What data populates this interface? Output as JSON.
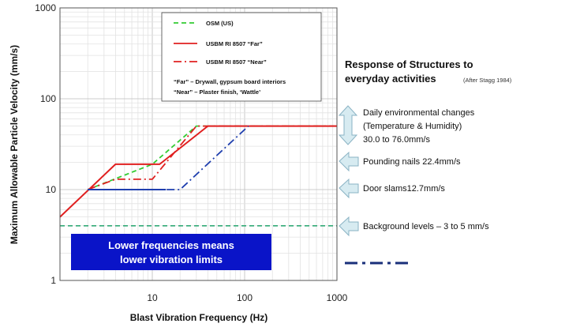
{
  "chart_data": {
    "type": "line",
    "xlabel": "Blast Vibration Frequency (Hz)",
    "ylabel": "Maximum Allowable Particle Velocity (mm/s)",
    "xscale": "log",
    "yscale": "log",
    "xlim": [
      1,
      1000
    ],
    "ylim": [
      1,
      1000
    ],
    "xticks": [
      "10",
      "100",
      "1000"
    ],
    "yticks": [
      "1",
      "10",
      "100",
      "1000"
    ],
    "grid": true,
    "legend_position": "top-right inside plot",
    "series": [
      {
        "name": "OSM (US)",
        "color": "#33cc33",
        "style": "dashed",
        "x": [
          2,
          10,
          30,
          1000
        ],
        "y": [
          10,
          19,
          50,
          50
        ]
      },
      {
        "name": "USBM RI 8507 “Far”",
        "color": "#e02020",
        "style": "solid",
        "x": [
          1,
          4,
          12,
          40,
          1000
        ],
        "y": [
          5,
          19,
          19,
          50,
          50
        ]
      },
      {
        "name": "USBM RI 8507 “Near”",
        "color": "#e02020",
        "style": "dashdot",
        "x": [
          2,
          4,
          10,
          30,
          1000
        ],
        "y": [
          10,
          13,
          13,
          50,
          50
        ]
      },
      {
        "name": "",
        "color": "#1f3fae",
        "style": "dashdot",
        "x": [
          2,
          20,
          110
        ],
        "y": [
          10,
          10,
          50
        ]
      },
      {
        "name": "",
        "color": "#1f3fae",
        "style": "solid",
        "x": [
          2,
          14
        ],
        "y": [
          10,
          10
        ]
      },
      {
        "name": "",
        "color": "#33aa77",
        "style": "dashed",
        "x": [
          1,
          1000
        ],
        "y": [
          4,
          4
        ]
      }
    ],
    "legend_note_lines": [
      "“Far” – Drywall, gypsum board interiors",
      "“Near” – Plaster finish, ‘Wattle’"
    ],
    "callout_lines": [
      "Lower frequencies means",
      "lower vibration limits"
    ]
  },
  "response": {
    "title_lines": [
      "Response of Structures to",
      "everyday activities"
    ],
    "source": "(After Stagg 1984)",
    "items": [
      {
        "lines": [
          "Daily environmental changes",
          "(Temperature & Humidity)",
          "30.0 to 76.0mm/s"
        ]
      },
      {
        "lines": [
          "Pounding nails 22.4mm/s"
        ]
      },
      {
        "lines": [
          "Door slams12.7mm/s"
        ]
      },
      {
        "lines": [
          "Background levels – 3 to 5 mm/s"
        ]
      }
    ],
    "colors": {
      "arrow_fill": "#d7ebf1",
      "arrow_stroke": "#8ab3c4",
      "callout_bg": "#0a14c8",
      "sample_line": "#1a2f7a"
    }
  }
}
